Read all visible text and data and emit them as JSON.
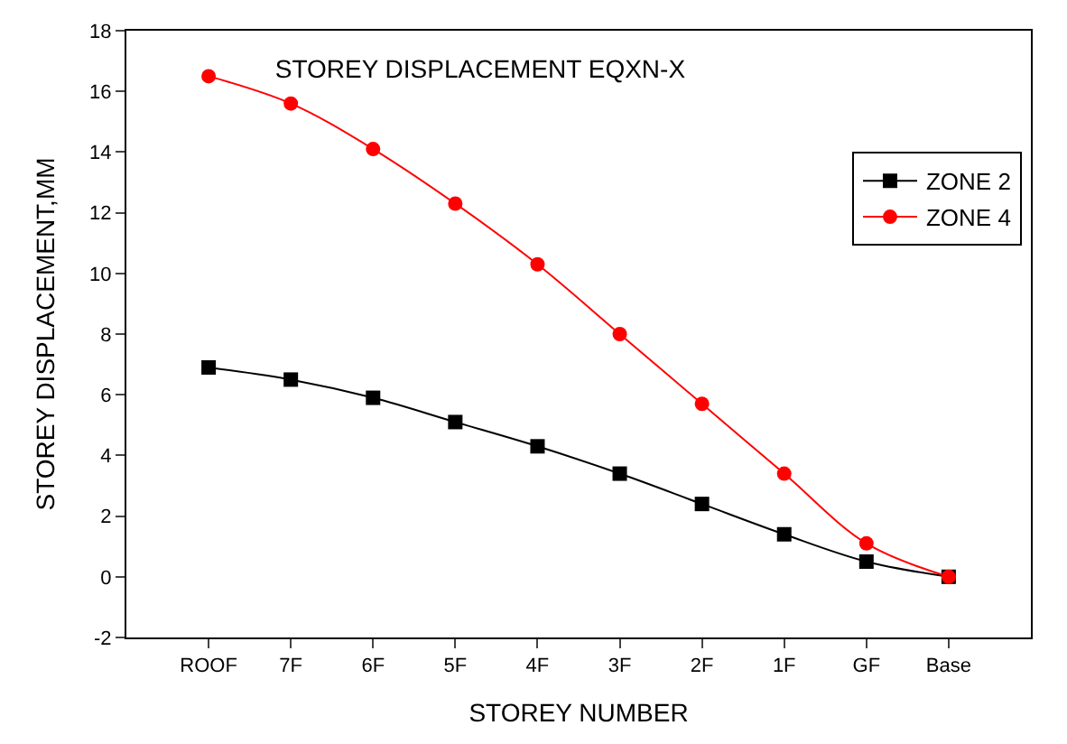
{
  "chart_data": {
    "type": "line",
    "title": "STOREY DISPLACEMENT EQXN-X",
    "xlabel": "STOREY NUMBER",
    "ylabel": "STOREY DISPLACEMENT,MM",
    "categories": [
      "ROOF",
      "7F",
      "6F",
      "5F",
      "4F",
      "3F",
      "2F",
      "1F",
      "GF",
      "Base"
    ],
    "series": [
      {
        "name": "ZONE 2",
        "color": "#000000",
        "marker": "square",
        "values": [
          6.9,
          6.5,
          5.9,
          5.1,
          4.3,
          3.4,
          2.4,
          1.4,
          0.5,
          0
        ]
      },
      {
        "name": "ZONE 4",
        "color": "#ff0000",
        "marker": "circle",
        "values": [
          16.5,
          15.6,
          14.1,
          12.3,
          10.3,
          8.0,
          5.7,
          3.4,
          1.1,
          0
        ]
      }
    ],
    "ylim": [
      -2,
      18
    ],
    "yticks": [
      -2,
      0,
      2,
      4,
      6,
      8,
      10,
      12,
      14,
      16,
      18
    ],
    "legend": "top right"
  }
}
